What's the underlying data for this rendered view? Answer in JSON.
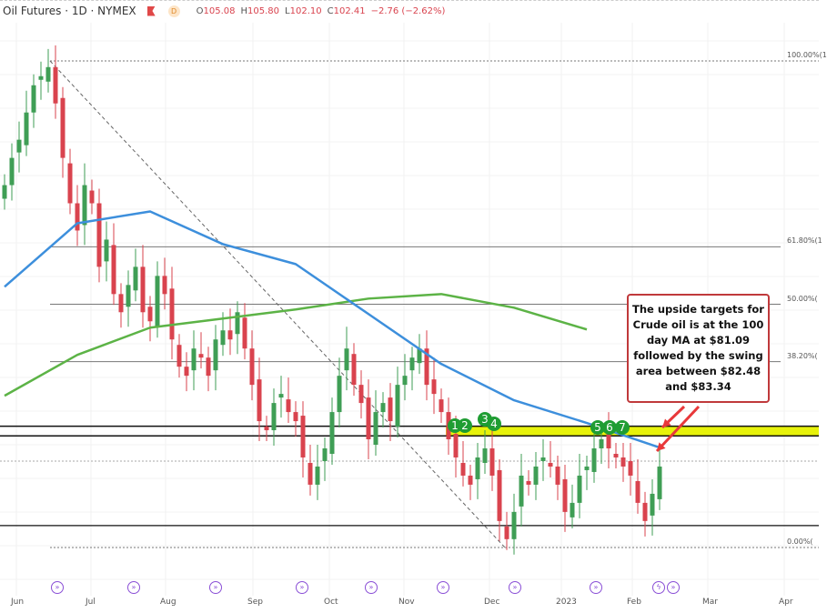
{
  "header": {
    "title": "Oil Futures · 1D · NYMEX",
    "badge": "D",
    "open_label": "O",
    "open": "105.08",
    "high_label": "H",
    "high": "105.80",
    "low_label": "L",
    "low": "102.10",
    "close_label": "C",
    "close": "102.41",
    "change": "−2.76 (−2.62%)"
  },
  "annotation": {
    "text": "The upside targets for Crude oil is at the 100 day MA at $81.09 followed by the swing area between $82.48 and $83.34"
  },
  "markers": [
    "1",
    "2",
    "3",
    "4",
    "5",
    "6",
    "7"
  ],
  "colors": {
    "up": "#3f9e55",
    "down": "#d9434e",
    "ma_blue": "#3d8fdc",
    "ma_green": "#5cb346",
    "band": "#e7f20a",
    "box_border": "#c0393b",
    "arrow": "#e8383a",
    "event": "#8a4fd6",
    "marker": "#1f9d33"
  },
  "chart_data": {
    "type": "candlestick",
    "title": "Oil Futures · 1D · NYMEX",
    "ylim": [
      70.08,
      123.68
    ],
    "x_ticks": [
      "Jun",
      "Jul",
      "Aug",
      "Sep",
      "Oct",
      "Nov",
      "Dec",
      "2023",
      "Feb",
      "Mar",
      "Apr"
    ],
    "closes": [
      110,
      113,
      115,
      118,
      121,
      122,
      123,
      119,
      113,
      108,
      105,
      110,
      108,
      101,
      104,
      98,
      96,
      99,
      101,
      96,
      95,
      100,
      98,
      93,
      90,
      89,
      92,
      91,
      89,
      93,
      94,
      93,
      96,
      92,
      88,
      84,
      83,
      86,
      87,
      85,
      84,
      80,
      77,
      79,
      81,
      85,
      89,
      92,
      88,
      86,
      82,
      85,
      86,
      84,
      88,
      89,
      91,
      92,
      88,
      87,
      85,
      82,
      80,
      78,
      77,
      80,
      81,
      78,
      73,
      71,
      74,
      78,
      77,
      79,
      80,
      79,
      77,
      74,
      75,
      78,
      79,
      81,
      82,
      81,
      80,
      79,
      78,
      75,
      73,
      76,
      79
    ],
    "ma_100_every_10_bars": [
      98.8,
      105.8,
      107.1,
      103.5,
      101.3,
      95.8,
      90.3,
      86.3,
      83.8,
      81.1
    ],
    "ma_200_every_10_bars": [
      86.8,
      91.3,
      94.3,
      95.3,
      96.3,
      97.5,
      98.0,
      96.5,
      94.1
    ],
    "fib_levels": [
      {
        "label": "100.00%(1",
        "value": 123.68
      },
      {
        "label": "61.80%(1",
        "value": 103.2
      },
      {
        "label": "50.00%(",
        "value": 96.88
      },
      {
        "label": "38.20%(",
        "value": 90.56
      },
      {
        "label": "0.00%(",
        "value": 70.08
      }
    ],
    "swing_area": [
      82.48,
      83.34
    ],
    "ma_100_value": 81.09,
    "support_line": 72.5
  }
}
